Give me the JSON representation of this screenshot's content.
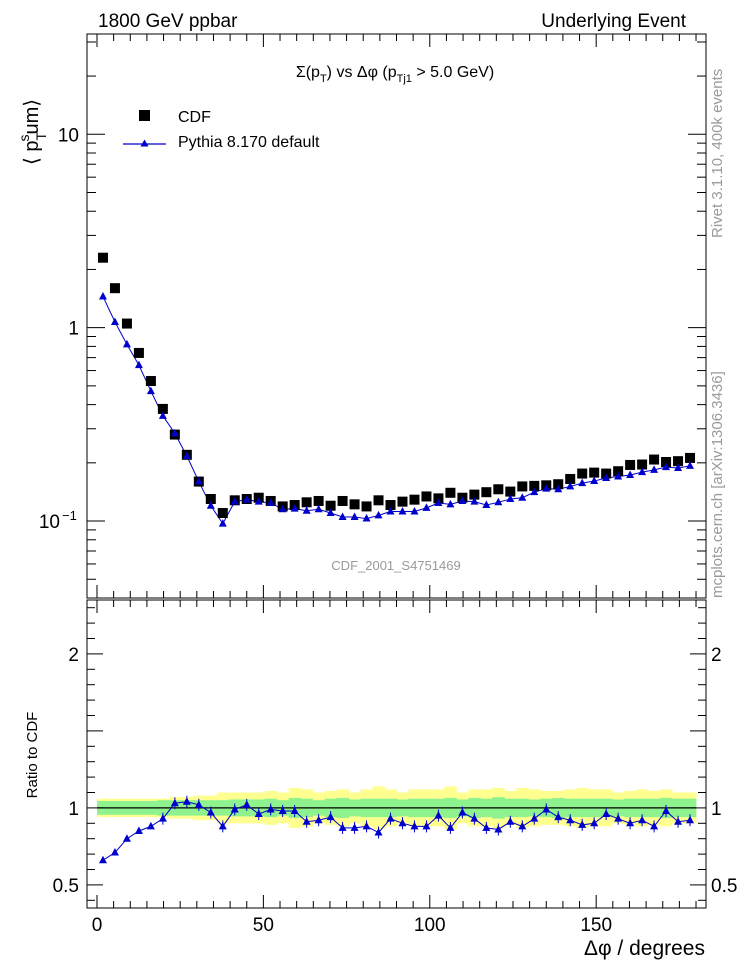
{
  "header": {
    "left": "1800 GeV ppbar",
    "right": "Underlying Event"
  },
  "side_labels": {
    "rivet": "Rivet 3.1.10,  400k events",
    "mcplots": "mcplots.cern.ch [arXiv:1306.3436]"
  },
  "chart_data": [
    {
      "type": "scatter",
      "panel": "main",
      "title": "Σ(p_T) vs Δφ (p_Tj1 > 5.0 GeV)",
      "ylabel": "⟨ p_T^sum⟩",
      "watermark": "CDF_2001_S4751469",
      "yscale": "log",
      "xlim": [
        -3,
        183
      ],
      "ylim": [
        0.04,
        33
      ],
      "ytick_labels": [
        {
          "value": 0.1,
          "label": "10",
          "exponent": "−1"
        },
        {
          "value": 1,
          "label": "1"
        },
        {
          "value": 10,
          "label": "10"
        }
      ],
      "legend_position": "top-left",
      "legend": [
        {
          "name": "CDF",
          "marker": "square",
          "color": "#000000"
        },
        {
          "name": "Pythia 8.170 default",
          "marker": "triangle-line",
          "color": "#0000cc"
        }
      ],
      "x": [
        1.8,
        5.4,
        9,
        12.6,
        16.2,
        19.8,
        23.4,
        27,
        30.6,
        34.2,
        37.8,
        41.4,
        45,
        48.6,
        52.2,
        55.8,
        59.4,
        63,
        66.6,
        70.2,
        73.8,
        77.4,
        81,
        84.6,
        88.2,
        91.8,
        95.4,
        99,
        102.6,
        106.2,
        109.8,
        113.4,
        117,
        120.6,
        124.2,
        127.8,
        131.4,
        135,
        138.6,
        142.2,
        145.8,
        149.4,
        153,
        156.6,
        160.2,
        163.8,
        167.4,
        171,
        174.6,
        178.2
      ],
      "series": [
        {
          "name": "CDF",
          "values": [
            2.3,
            1.6,
            1.05,
            0.74,
            0.53,
            0.38,
            0.28,
            0.22,
            0.16,
            0.13,
            0.11,
            0.128,
            0.13,
            0.132,
            0.127,
            0.119,
            0.121,
            0.125,
            0.127,
            0.12,
            0.127,
            0.122,
            0.119,
            0.128,
            0.121,
            0.126,
            0.129,
            0.134,
            0.131,
            0.14,
            0.132,
            0.137,
            0.141,
            0.146,
            0.142,
            0.151,
            0.152,
            0.153,
            0.155,
            0.165,
            0.176,
            0.178,
            0.176,
            0.181,
            0.195,
            0.196,
            0.208,
            0.202,
            0.204,
            0.212
          ]
        },
        {
          "name": "Pythia 8.170 default",
          "values": [
            1.45,
            1.07,
            0.82,
            0.64,
            0.47,
            0.35,
            0.284,
            0.217,
            0.16,
            0.12,
            0.097,
            0.126,
            0.129,
            0.126,
            0.124,
            0.115,
            0.116,
            0.113,
            0.115,
            0.11,
            0.105,
            0.105,
            0.103,
            0.107,
            0.112,
            0.112,
            0.112,
            0.117,
            0.124,
            0.122,
            0.127,
            0.126,
            0.121,
            0.125,
            0.13,
            0.132,
            0.141,
            0.147,
            0.146,
            0.151,
            0.157,
            0.161,
            0.167,
            0.17,
            0.173,
            0.179,
            0.184,
            0.19,
            0.188,
            0.193
          ]
        }
      ]
    },
    {
      "type": "line",
      "panel": "ratio",
      "ylabel": "Ratio to CDF",
      "xlabel": "Δφ / degrees",
      "xlim": [
        -3,
        183
      ],
      "ylim": [
        0.35,
        2.35
      ],
      "xticks": [
        0,
        50,
        100,
        150
      ],
      "yticks": [
        0.5,
        1,
        2
      ],
      "reference_value": 1,
      "band_colors": {
        "inner": "#8ef28e",
        "outer": "#ffff90"
      },
      "bands": {
        "inner": [
          0.045,
          0.045,
          0.045,
          0.045,
          0.045,
          0.05,
          0.05,
          0.05,
          0.05,
          0.05,
          0.05,
          0.055,
          0.055,
          0.055,
          0.06,
          0.05,
          0.065,
          0.06,
          0.05,
          0.06,
          0.065,
          0.055,
          0.06,
          0.06,
          0.06,
          0.055,
          0.06,
          0.06,
          0.06,
          0.065,
          0.055,
          0.065,
          0.06,
          0.07,
          0.06,
          0.06,
          0.055,
          0.06,
          0.065,
          0.06,
          0.06,
          0.06,
          0.06,
          0.055,
          0.06,
          0.06,
          0.06,
          0.065,
          0.06,
          0.06
        ],
        "outer": [
          0.06,
          0.06,
          0.06,
          0.06,
          0.06,
          0.06,
          0.07,
          0.07,
          0.08,
          0.08,
          0.1,
          0.1,
          0.1,
          0.1,
          0.11,
          0.1,
          0.13,
          0.12,
          0.1,
          0.11,
          0.12,
          0.1,
          0.12,
          0.14,
          0.12,
          0.1,
          0.12,
          0.12,
          0.12,
          0.14,
          0.1,
          0.12,
          0.12,
          0.13,
          0.11,
          0.13,
          0.12,
          0.11,
          0.11,
          0.12,
          0.13,
          0.12,
          0.12,
          0.1,
          0.11,
          0.12,
          0.11,
          0.12,
          0.1,
          0.1
        ]
      },
      "series": [
        {
          "name": "Pythia 8.170 default",
          "values": [
            0.66,
            0.71,
            0.8,
            0.85,
            0.88,
            0.93,
            1.03,
            1.04,
            1.02,
            0.97,
            0.88,
            0.99,
            1.02,
            0.96,
            0.99,
            0.98,
            0.98,
            0.91,
            0.92,
            0.94,
            0.87,
            0.87,
            0.88,
            0.84,
            0.93,
            0.9,
            0.88,
            0.88,
            0.95,
            0.87,
            0.97,
            0.93,
            0.87,
            0.86,
            0.91,
            0.88,
            0.93,
            0.99,
            0.94,
            0.92,
            0.89,
            0.9,
            0.96,
            0.93,
            0.9,
            0.92,
            0.88,
            0.98,
            0.91,
            0.92
          ]
        }
      ]
    }
  ]
}
